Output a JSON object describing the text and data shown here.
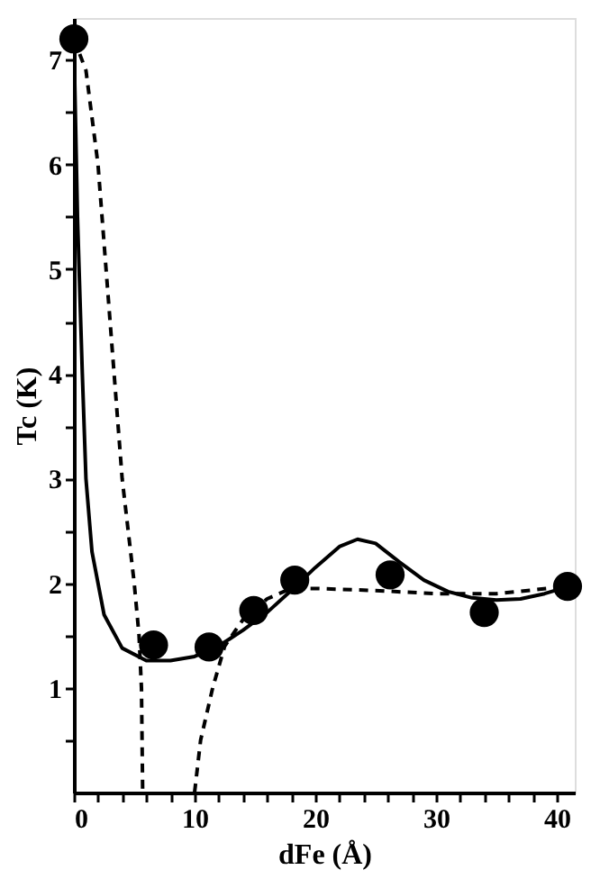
{
  "chart_data": {
    "type": "scatter",
    "xlabel": "dFe (Å)",
    "ylabel": "Tc (K)",
    "xlim": [
      0,
      41.5
    ],
    "ylim": [
      0,
      7.4
    ],
    "xticks": [
      0,
      {
        "value": 2,
        "label": null
      },
      {
        "value": 4,
        "label": null
      },
      {
        "value": 6,
        "label": null
      },
      {
        "value": 8,
        "label": null
      },
      10,
      {
        "value": 12,
        "label": null
      },
      {
        "value": 14,
        "label": null
      },
      {
        "value": 16,
        "label": null
      },
      {
        "value": 18,
        "label": null
      },
      20,
      {
        "value": 22,
        "label": null
      },
      {
        "value": 24,
        "label": null
      },
      {
        "value": 26,
        "label": null
      },
      {
        "value": 28,
        "label": null
      },
      30,
      {
        "value": 32,
        "label": null
      },
      {
        "value": 34,
        "label": null
      },
      {
        "value": 36,
        "label": null
      },
      {
        "value": 38,
        "label": null
      },
      40
    ],
    "yticks": [
      {
        "value": 0.5,
        "label": null
      },
      1,
      {
        "value": 1.5,
        "label": null
      },
      2,
      {
        "value": 2.5,
        "label": null
      },
      3,
      {
        "value": 3.5,
        "label": null
      },
      4,
      {
        "value": 4.5,
        "label": null
      },
      5,
      {
        "value": 5.5,
        "label": null
      },
      6,
      {
        "value": 6.5,
        "label": null
      },
      7
    ],
    "grid": false,
    "series": [
      {
        "type": "line",
        "line_style": "solid",
        "marker": "none",
        "color": "#000000",
        "x": [
          0,
          0.3,
          0.7,
          1,
          1.5,
          2.5,
          4,
          6,
          8,
          10,
          12,
          14,
          16,
          18,
          20,
          22,
          23.5,
          25,
          27,
          29,
          31,
          33,
          35,
          37,
          39,
          41
        ],
        "values": [
          7.2,
          5.5,
          4,
          3,
          2.3,
          1.7,
          1.38,
          1.26,
          1.26,
          1.3,
          1.4,
          1.55,
          1.72,
          1.93,
          2.15,
          2.35,
          2.42,
          2.38,
          2.2,
          2.03,
          1.92,
          1.86,
          1.84,
          1.85,
          1.9,
          1.97
        ]
      },
      {
        "type": "line",
        "line_style": "dashed",
        "marker": "none",
        "color": "#000000",
        "x": [
          0,
          1,
          2,
          3,
          4,
          5,
          5.4,
          5.6,
          5.7
        ],
        "values": [
          7.2,
          6.9,
          6,
          4.5,
          3,
          2,
          1.5,
          1,
          0
        ]
      },
      {
        "type": "line",
        "line_style": "dashed",
        "marker": "none",
        "color": "#000000",
        "x": [
          10,
          10.5,
          11.5,
          12.5,
          14,
          16,
          18,
          20,
          25,
          30,
          35,
          41
        ],
        "values": [
          0,
          0.5,
          1,
          1.4,
          1.65,
          1.85,
          1.95,
          1.95,
          1.93,
          1.9,
          1.9,
          1.97
        ]
      },
      {
        "marker": "circle",
        "color": "#000000",
        "x": [
          0,
          6.6,
          11.2,
          14.9,
          18.3,
          26.2,
          34,
          40.9
        ],
        "values": [
          7.2,
          1.41,
          1.39,
          1.74,
          2.03,
          2.08,
          1.72,
          1.97
        ]
      }
    ]
  }
}
